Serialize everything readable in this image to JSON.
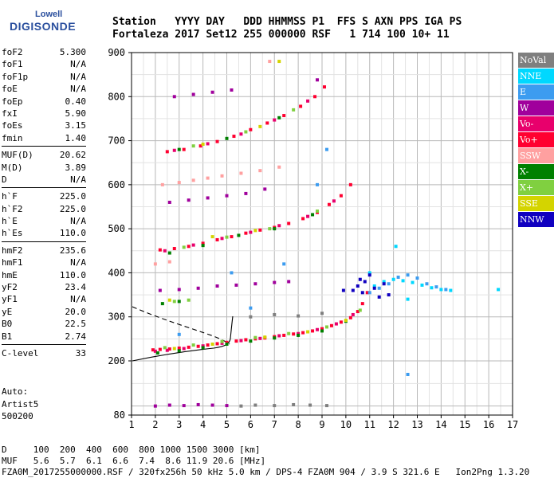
{
  "logo": {
    "line1": "Lowell",
    "line2": "DIGISONDE"
  },
  "header": {
    "line1": "Station   YYYY DAY   DDD HHMMSS P1  FFS S AXN PPS IGA PS",
    "line2": "Fortaleza 2017 Set12 255 000000 RSF   1 714 100 10+ 11"
  },
  "params": {
    "group1": [
      {
        "name": "foF2",
        "value": "5.300"
      },
      {
        "name": "foF1",
        "value": "N/A"
      },
      {
        "name": "foF1p",
        "value": "N/A"
      },
      {
        "name": "foE",
        "value": "N/A"
      },
      {
        "name": "foEp",
        "value": "0.40"
      },
      {
        "name": "fxI",
        "value": "5.90"
      },
      {
        "name": "foEs",
        "value": "3.15"
      },
      {
        "name": "fmin",
        "value": "1.40"
      }
    ],
    "group2": [
      {
        "name": "MUF(D)",
        "value": "20.62"
      },
      {
        "name": "M(D)",
        "value": "3.89"
      },
      {
        "name": "D",
        "value": "N/A"
      }
    ],
    "group3": [
      {
        "name": "h`F",
        "value": "225.0"
      },
      {
        "name": "h`F2",
        "value": "225.0"
      },
      {
        "name": "h`E",
        "value": "N/A"
      },
      {
        "name": "h`Es",
        "value": "110.0"
      }
    ],
    "group4": [
      {
        "name": "hmF2",
        "value": "235.6"
      },
      {
        "name": "hmF1",
        "value": "N/A"
      },
      {
        "name": "hmE",
        "value": "110.0"
      },
      {
        "name": "yF2",
        "value": "23.4"
      },
      {
        "name": "yF1",
        "value": "N/A"
      },
      {
        "name": "yE",
        "value": "20.0"
      },
      {
        "name": "B0",
        "value": "22.5"
      },
      {
        "name": "B1",
        "value": "2.74"
      }
    ],
    "group5": [
      {
        "name": "C-level",
        "value": "33"
      }
    ]
  },
  "auto": {
    "line1": "Auto:",
    "line2": "Artist5",
    "line3": "500200"
  },
  "legend": [
    {
      "label": "NoVal",
      "color": "#7f7f7f"
    },
    {
      "label": "NNE",
      "color": "#00d8ff"
    },
    {
      "label": "E",
      "color": "#3c9cf0"
    },
    {
      "label": "W",
      "color": "#a0009c"
    },
    {
      "label": "Vo-",
      "color": "#e8006c"
    },
    {
      "label": "Vo+",
      "color": "#ff0030"
    },
    {
      "label": "SSW",
      "color": "#ffa0a0"
    },
    {
      "label": "X-",
      "color": "#008000"
    },
    {
      "label": "X+",
      "color": "#80d040"
    },
    {
      "label": "SSE",
      "color": "#d4d400"
    },
    {
      "label": "NNW",
      "color": "#1000c0"
    }
  ],
  "footer": {
    "line1": "D     100  200  400  600  800 1000 1500 3000 [km]",
    "line2": "MUF   5.6  5.7  6.1  6.6  7.4  8.6 11.9 20.6 [MHz]",
    "line3": "FZA0M_2017255000000.RSF / 320fx256h 50 kHz 5.0 km / DPS-4 FZA0M 904 / 3.9 S 321.6 E   Ion2Png 1.3.20"
  },
  "chart_data": {
    "type": "scatter",
    "xlim": [
      1,
      17
    ],
    "ylim": [
      80,
      900
    ],
    "xticks": [
      "1",
      "2",
      "3",
      "4",
      "5",
      "6",
      "7",
      "8",
      "9",
      "10",
      "11",
      "12",
      "13",
      "14",
      "15",
      "16",
      "17"
    ],
    "yticks": [
      "900",
      "800",
      "700",
      "600",
      "500",
      "400",
      "300",
      "200",
      "80"
    ],
    "grid": true,
    "legend_position": "right",
    "series": [
      {
        "name": "Vo+",
        "color": "#ff0030",
        "points": [
          [
            1.9,
            225
          ],
          [
            2.2,
            226
          ],
          [
            2.6,
            227
          ],
          [
            3.0,
            229
          ],
          [
            3.4,
            231
          ],
          [
            3.8,
            233
          ],
          [
            4.2,
            236
          ],
          [
            4.6,
            239
          ],
          [
            5.0,
            242
          ],
          [
            5.4,
            245
          ],
          [
            5.8,
            248
          ],
          [
            6.2,
            250
          ],
          [
            6.6,
            252
          ],
          [
            7.0,
            255
          ],
          [
            7.4,
            258
          ],
          [
            7.8,
            261
          ],
          [
            8.2,
            264
          ],
          [
            8.6,
            268
          ],
          [
            9.0,
            273
          ],
          [
            9.4,
            280
          ],
          [
            9.8,
            288
          ],
          [
            10.2,
            298
          ],
          [
            10.5,
            312
          ],
          [
            10.7,
            330
          ],
          [
            10.9,
            355
          ],
          [
            2.2,
            452
          ],
          [
            2.8,
            455
          ],
          [
            3.4,
            460
          ],
          [
            4.0,
            467
          ],
          [
            4.6,
            475
          ],
          [
            5.2,
            482
          ],
          [
            5.8,
            490
          ],
          [
            6.4,
            497
          ],
          [
            7.0,
            503
          ],
          [
            7.6,
            512
          ],
          [
            8.2,
            523
          ],
          [
            8.8,
            537
          ],
          [
            9.3,
            555
          ],
          [
            9.8,
            575
          ],
          [
            10.2,
            600
          ],
          [
            2.5,
            675
          ],
          [
            3.2,
            680
          ],
          [
            3.9,
            688
          ],
          [
            4.6,
            698
          ],
          [
            5.3,
            710
          ],
          [
            6.0,
            725
          ],
          [
            6.7,
            740
          ],
          [
            7.4,
            757
          ],
          [
            8.1,
            778
          ],
          [
            8.7,
            800
          ],
          [
            9.1,
            822
          ]
        ]
      },
      {
        "name": "Vo-",
        "color": "#e8006c",
        "points": [
          [
            2.0,
            222
          ],
          [
            2.5,
            224
          ],
          [
            3.2,
            228
          ],
          [
            4.0,
            234
          ],
          [
            4.8,
            240
          ],
          [
            5.6,
            246
          ],
          [
            6.4,
            251
          ],
          [
            7.2,
            257
          ],
          [
            8.0,
            262
          ],
          [
            8.8,
            271
          ],
          [
            9.6,
            284
          ],
          [
            10.3,
            305
          ],
          [
            2.4,
            450
          ],
          [
            3.6,
            463
          ],
          [
            4.8,
            478
          ],
          [
            6.0,
            492
          ],
          [
            7.2,
            507
          ],
          [
            8.4,
            528
          ],
          [
            9.5,
            563
          ],
          [
            2.8,
            678
          ],
          [
            4.2,
            693
          ],
          [
            5.6,
            715
          ],
          [
            7.0,
            747
          ],
          [
            8.4,
            790
          ]
        ]
      },
      {
        "name": "X-",
        "color": "#008000",
        "points": [
          [
            2.1,
            218
          ],
          [
            3.0,
            223
          ],
          [
            4.0,
            230
          ],
          [
            5.0,
            238
          ],
          [
            6.0,
            245
          ],
          [
            7.0,
            252
          ],
          [
            8.0,
            258
          ],
          [
            9.0,
            268
          ],
          [
            10.0,
            290
          ],
          [
            2.3,
            330
          ],
          [
            3.0,
            335
          ],
          [
            2.6,
            445
          ],
          [
            4.0,
            462
          ],
          [
            5.5,
            485
          ],
          [
            7.0,
            500
          ],
          [
            8.6,
            532
          ],
          [
            3.0,
            680
          ],
          [
            5.0,
            705
          ],
          [
            7.2,
            752
          ]
        ]
      },
      {
        "name": "X+",
        "color": "#80d040",
        "points": [
          [
            2.4,
            230
          ],
          [
            3.6,
            236
          ],
          [
            4.8,
            244
          ],
          [
            6.2,
            253
          ],
          [
            7.6,
            262
          ],
          [
            9.2,
            277
          ],
          [
            10.6,
            315
          ],
          [
            2.8,
            335
          ],
          [
            3.4,
            338
          ],
          [
            3.2,
            458
          ],
          [
            5.0,
            481
          ],
          [
            6.8,
            500
          ],
          [
            8.8,
            540
          ],
          [
            3.6,
            688
          ],
          [
            5.8,
            720
          ],
          [
            7.8,
            770
          ]
        ]
      },
      {
        "name": "W",
        "color": "#a0009c",
        "points": [
          [
            2.0,
            100
          ],
          [
            2.6,
            102
          ],
          [
            3.2,
            101
          ],
          [
            3.8,
            103
          ],
          [
            4.4,
            102
          ],
          [
            5.0,
            101
          ],
          [
            2.2,
            360
          ],
          [
            3.0,
            362
          ],
          [
            3.8,
            365
          ],
          [
            4.6,
            370
          ],
          [
            5.4,
            372
          ],
          [
            6.2,
            375
          ],
          [
            7.0,
            378
          ],
          [
            7.6,
            380
          ],
          [
            2.6,
            560
          ],
          [
            3.4,
            565
          ],
          [
            4.2,
            570
          ],
          [
            5.0,
            575
          ],
          [
            5.8,
            580
          ],
          [
            6.6,
            590
          ],
          [
            2.8,
            800
          ],
          [
            3.6,
            805
          ],
          [
            4.4,
            810
          ],
          [
            5.2,
            815
          ],
          [
            8.8,
            838
          ]
        ]
      },
      {
        "name": "NNE",
        "color": "#00d8ff",
        "points": [
          [
            11.2,
            370
          ],
          [
            11.6,
            380
          ],
          [
            12.0,
            385
          ],
          [
            12.4,
            382
          ],
          [
            12.8,
            378
          ],
          [
            13.2,
            372
          ],
          [
            13.6,
            366
          ],
          [
            14.0,
            362
          ],
          [
            14.4,
            360
          ],
          [
            16.4,
            362
          ],
          [
            12.1,
            460
          ],
          [
            11.0,
            400
          ],
          [
            12.6,
            340
          ]
        ]
      },
      {
        "name": "E",
        "color": "#3c9cf0",
        "points": [
          [
            11.0,
            355
          ],
          [
            11.4,
            365
          ],
          [
            11.8,
            375
          ],
          [
            12.2,
            390
          ],
          [
            12.6,
            395
          ],
          [
            13.0,
            388
          ],
          [
            13.4,
            375
          ],
          [
            13.8,
            368
          ],
          [
            14.2,
            362
          ],
          [
            5.2,
            400
          ],
          [
            7.4,
            420
          ],
          [
            8.8,
            600
          ],
          [
            9.2,
            680
          ],
          [
            12.6,
            170
          ],
          [
            3.0,
            260
          ],
          [
            6.0,
            320
          ]
        ]
      },
      {
        "name": "NNW",
        "color": "#1000c0",
        "points": [
          [
            10.3,
            360
          ],
          [
            10.5,
            370
          ],
          [
            10.6,
            385
          ],
          [
            10.8,
            380
          ],
          [
            11.0,
            395
          ],
          [
            11.2,
            365
          ],
          [
            11.4,
            345
          ],
          [
            11.6,
            375
          ],
          [
            11.8,
            350
          ],
          [
            10.7,
            355
          ],
          [
            9.9,
            360
          ]
        ]
      },
      {
        "name": "SSW",
        "color": "#ffa0a0",
        "points": [
          [
            2.3,
            600
          ],
          [
            3.0,
            605
          ],
          [
            3.6,
            610
          ],
          [
            4.2,
            615
          ],
          [
            4.8,
            620
          ],
          [
            5.6,
            626
          ],
          [
            6.4,
            632
          ],
          [
            7.2,
            640
          ],
          [
            6.8,
            880
          ],
          [
            2.0,
            420
          ],
          [
            2.6,
            425
          ]
        ]
      },
      {
        "name": "SSE",
        "color": "#d4d400",
        "points": [
          [
            2.8,
            228
          ],
          [
            4.4,
            238
          ],
          [
            6.6,
            254
          ],
          [
            8.4,
            266
          ],
          [
            10.0,
            292
          ],
          [
            2.6,
            338
          ],
          [
            4.4,
            482
          ],
          [
            6.2,
            496
          ],
          [
            4.0,
            692
          ],
          [
            6.4,
            732
          ],
          [
            7.2,
            880
          ]
        ]
      },
      {
        "name": "NoVal",
        "color": "#7f7f7f",
        "points": [
          [
            5.6,
            100
          ],
          [
            6.2,
            102
          ],
          [
            7.0,
            101
          ],
          [
            7.8,
            103
          ],
          [
            8.5,
            102
          ],
          [
            9.2,
            101
          ],
          [
            6.0,
            300
          ],
          [
            7.0,
            305
          ],
          [
            8.0,
            302
          ],
          [
            9.0,
            308
          ]
        ]
      }
    ]
  }
}
